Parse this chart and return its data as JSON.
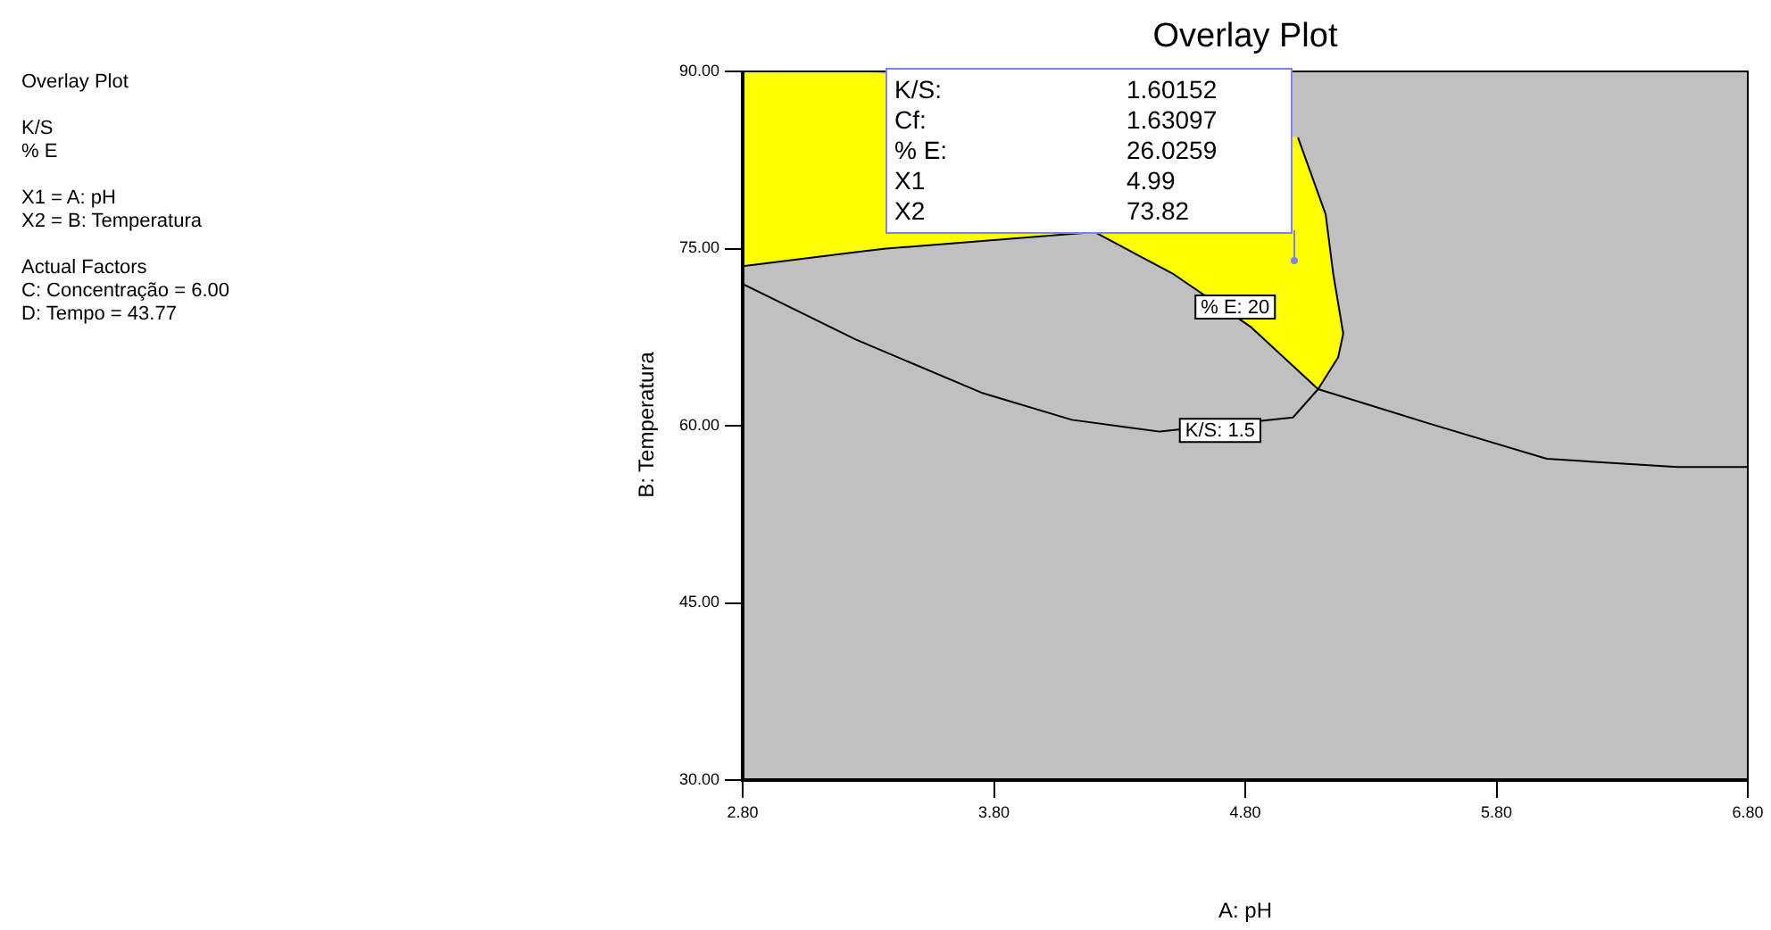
{
  "chart_data": {
    "type": "line",
    "title": "Overlay Plot",
    "xlabel": "A: pH",
    "ylabel": "B: Temperatura",
    "xlim": [
      2.8,
      6.8
    ],
    "xticks": [
      {
        "value": 2.8,
        "label": "2.80"
      },
      {
        "value": 3.8,
        "label": "3.80"
      },
      {
        "value": 4.8,
        "label": "4.80"
      },
      {
        "value": 5.8,
        "label": "5.80"
      },
      {
        "value": 6.8,
        "label": "6.80"
      }
    ],
    "ylim": [
      30,
      90
    ],
    "yticks": [
      {
        "value": 30,
        "label": "30.00"
      },
      {
        "value": 45,
        "label": "45.00"
      },
      {
        "value": 60,
        "label": "60.00"
      },
      {
        "value": 75,
        "label": "75.00"
      },
      {
        "value": 90,
        "label": "90.00"
      }
    ],
    "marker": "none",
    "line_style": "solid",
    "bands": [
      {
        "axis": "y",
        "from": 30,
        "to": 90,
        "color": "#c0c0c0"
      }
    ],
    "series": [
      {
        "type": "area",
        "color": "#ffff00",
        "x": [
          2.8,
          3.25,
          3.37,
          4.2,
          4.51,
          4.82,
          5.09,
          5.17,
          5.19,
          5.15,
          5.12,
          5.01,
          3.3,
          2.8
        ],
        "values": [
          73.5,
          74.7,
          75.0,
          76.4,
          72.9,
          68.4,
          63.1,
          65.8,
          67.8,
          72.9,
          77.9,
          84.4,
          90,
          90
        ]
      },
      {
        "color": "#000000",
        "x": [
          2.8,
          3.25,
          3.37,
          4.2,
          4.51,
          4.82,
          5.09,
          5.53,
          6.0,
          6.52,
          6.8
        ],
        "values": [
          73.5,
          74.7,
          75.0,
          76.4,
          72.9,
          68.4,
          63.1,
          60.2,
          57.2,
          56.5,
          56.5
        ]
      },
      {
        "color": "#000000",
        "x": [
          2.8,
          3.25,
          3.75,
          4.11,
          4.46,
          4.82,
          4.99,
          5.09,
          5.17,
          5.19,
          5.15,
          5.12,
          5.01
        ],
        "values": [
          72.0,
          67.3,
          62.8,
          60.5,
          59.5,
          null,
          60.7,
          63.1,
          65.8,
          67.8,
          72.9,
          77.9,
          84.4
        ]
      }
    ],
    "annotations": [
      "Overlay Plot",
      "K/S\n% E",
      "X1 = A: pH\nX2 = B: Temperatura",
      "Actual Factors\nC: Concentração = 6.00\nD: Tempo = 43.77",
      {
        "text": "% E: 20",
        "x": 4.76,
        "y": 70.05
      },
      {
        "text": "K/S: 1.5",
        "x": 4.7,
        "y": 59.6
      },
      "K/S:\t1.60152\nCf:\t1.63097\n% E:\t26.0259\nX1\t4.99\nX2\t73.82"
    ]
  }
}
